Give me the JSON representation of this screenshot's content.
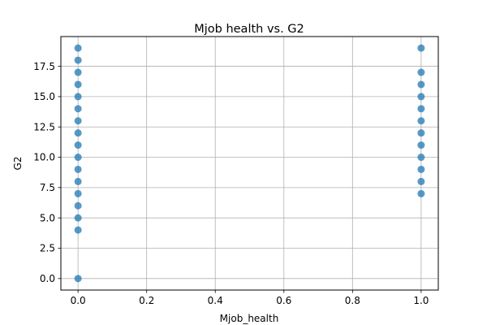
{
  "chart_data": {
    "type": "scatter",
    "title": "Mjob health vs. G2",
    "xlabel": "Mjob_health",
    "ylabel": "G2",
    "xlim": [
      -0.05,
      1.05
    ],
    "ylim": [
      -0.95,
      19.95
    ],
    "grid": true,
    "x_ticks": [
      "0.0",
      "0.2",
      "0.4",
      "0.6",
      "0.8",
      "1.0"
    ],
    "y_ticks": [
      "0.0",
      "2.5",
      "5.0",
      "7.5",
      "10.0",
      "12.5",
      "15.0",
      "17.5"
    ],
    "series": [
      {
        "color": "#1f77b4",
        "points": [
          {
            "x": 0,
            "y": 0
          },
          {
            "x": 0,
            "y": 4
          },
          {
            "x": 0,
            "y": 5
          },
          {
            "x": 0,
            "y": 6
          },
          {
            "x": 0,
            "y": 7
          },
          {
            "x": 0,
            "y": 8
          },
          {
            "x": 0,
            "y": 9
          },
          {
            "x": 0,
            "y": 10
          },
          {
            "x": 0,
            "y": 11
          },
          {
            "x": 0,
            "y": 12
          },
          {
            "x": 0,
            "y": 13
          },
          {
            "x": 0,
            "y": 14
          },
          {
            "x": 0,
            "y": 15
          },
          {
            "x": 0,
            "y": 16
          },
          {
            "x": 0,
            "y": 17
          },
          {
            "x": 0,
            "y": 18
          },
          {
            "x": 0,
            "y": 19
          },
          {
            "x": 1,
            "y": 7
          },
          {
            "x": 1,
            "y": 8
          },
          {
            "x": 1,
            "y": 9
          },
          {
            "x": 1,
            "y": 10
          },
          {
            "x": 1,
            "y": 11
          },
          {
            "x": 1,
            "y": 12
          },
          {
            "x": 1,
            "y": 13
          },
          {
            "x": 1,
            "y": 14
          },
          {
            "x": 1,
            "y": 15
          },
          {
            "x": 1,
            "y": 16
          },
          {
            "x": 1,
            "y": 17
          },
          {
            "x": 1,
            "y": 19
          }
        ]
      }
    ]
  }
}
